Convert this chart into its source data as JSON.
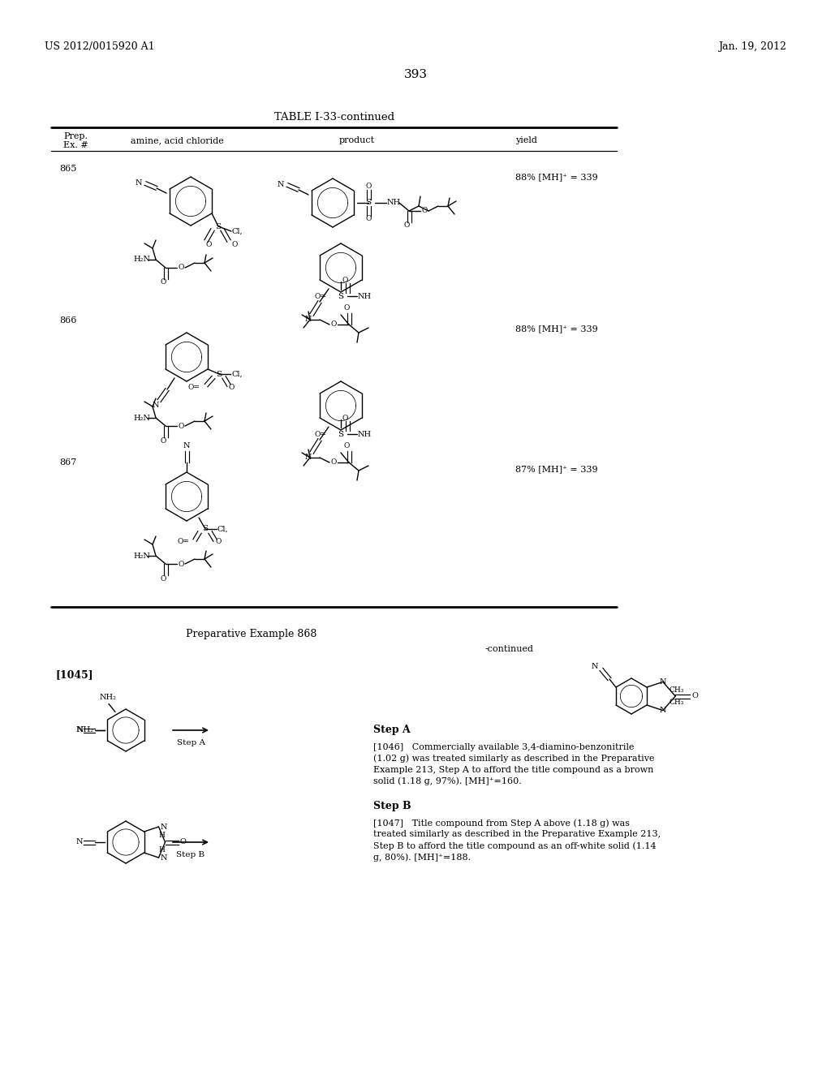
{
  "page_number": "393",
  "patent_number": "US 2012/0015920 A1",
  "patent_date": "Jan. 19, 2012",
  "table_title": "TABLE I-33-continued",
  "bg_color": "#ffffff",
  "text_color": "#000000",
  "step_a_text_1046": "[1046]   Commercially available 3,4-diamino-benzonitrile\n(1.02 g) was treated similarly as described in the Preparative\nExample 213, Step A to afford the title compound as a brown\nsolid (1.18 g, 97%). [MH]⁺=160.",
  "step_b_text_1047": "[1047]   Title compound from Step A above (1.18 g) was\ntreated similarly as described in the Preparative Example 213,\nStep B to afford the title compound as an off-white solid (1.14\ng, 80%). [MH]⁺=188."
}
